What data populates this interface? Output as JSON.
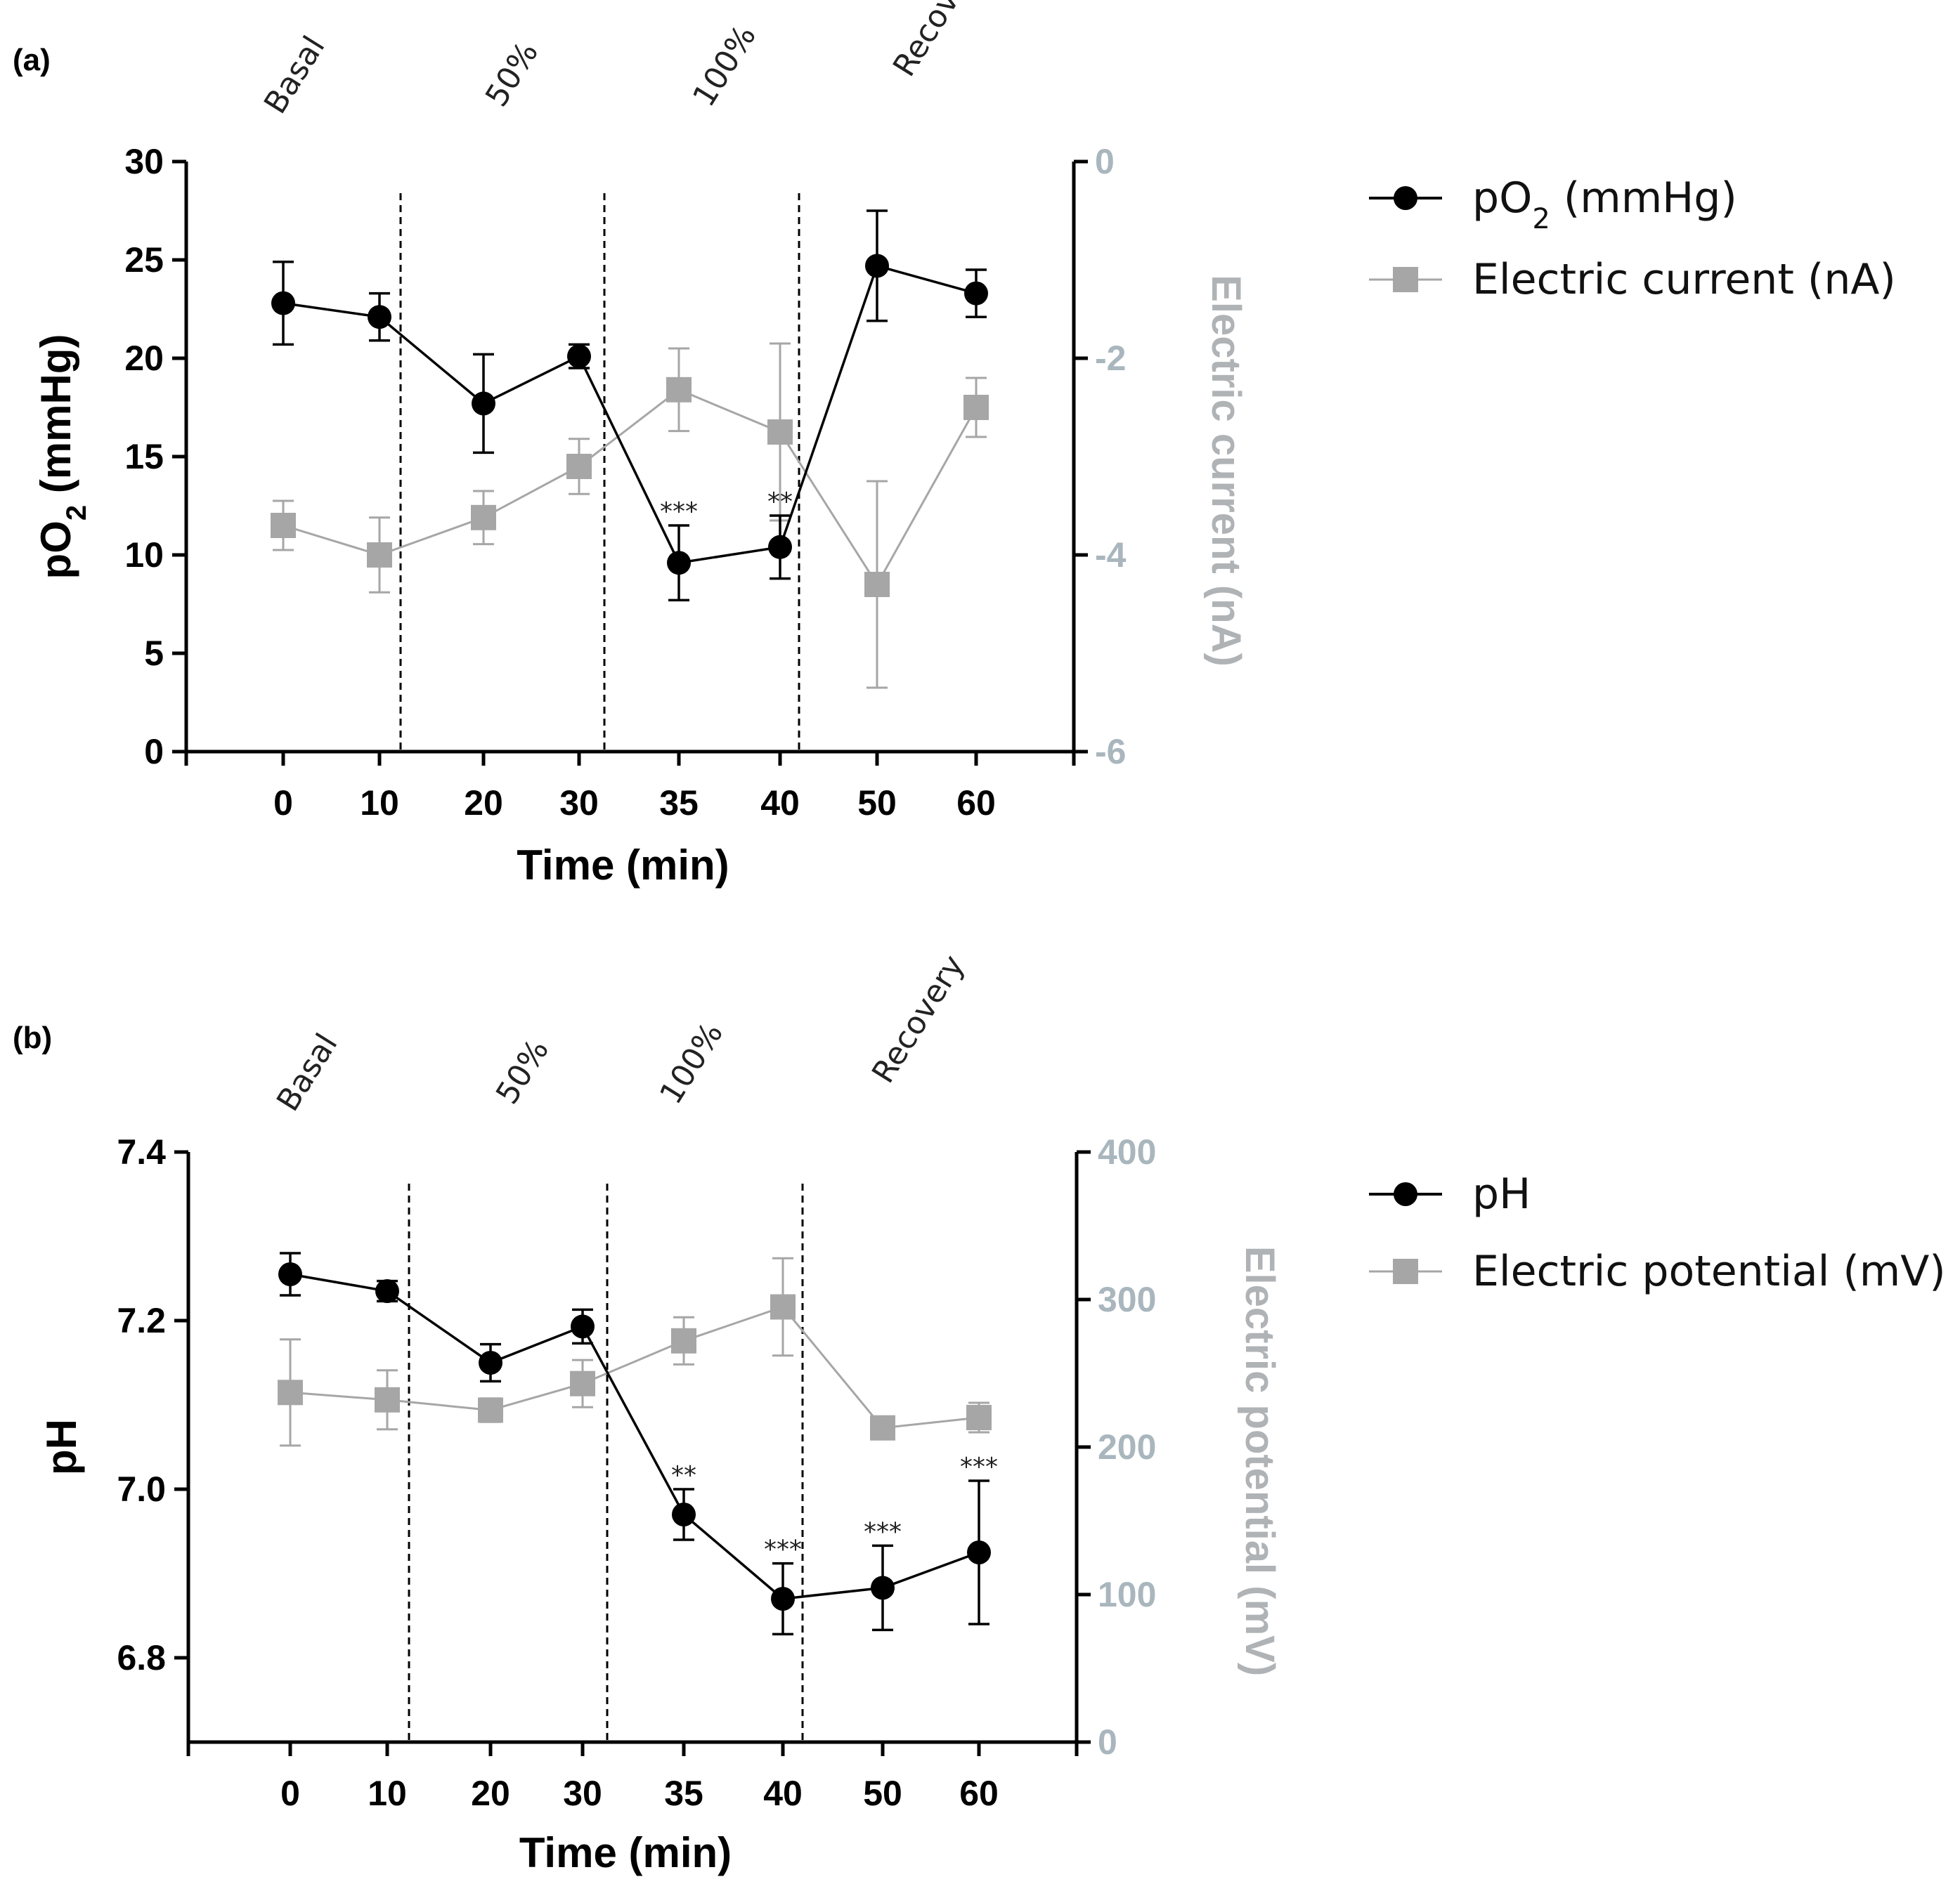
{
  "chart_data": [
    {
      "panel_label": "(a)",
      "type": "line",
      "xlabel": "Time (min)",
      "ylabel_left": {
        "main": "pO",
        "sub": "2",
        "rest": " (mmHg)"
      },
      "ylabel_right": "Electric current (nA)",
      "categories": [
        "0",
        "10",
        "20",
        "30",
        "35",
        "40",
        "50",
        "60"
      ],
      "phases": [
        "Basal",
        "50%",
        "100%",
        "Recovery"
      ],
      "ylim_left": [
        0,
        30
      ],
      "yticks_left": [
        "0",
        "5",
        "10",
        "15",
        "20",
        "25",
        "30"
      ],
      "ylim_right": [
        -6,
        0
      ],
      "yticks_right": [
        "-6",
        "-4",
        "-2",
        "0"
      ],
      "series": [
        {
          "name": "pO2 (mmHg)",
          "legend": {
            "main": "pO",
            "sub": "2",
            "rest": " (mmHg)"
          },
          "axis": "left",
          "marker": "circle",
          "color": "#000000",
          "values": [
            22.8,
            22.1,
            17.7,
            20.1,
            9.6,
            10.4,
            24.7,
            23.3
          ],
          "errors": [
            2.1,
            1.2,
            2.5,
            0.6,
            1.9,
            1.6,
            2.8,
            1.2
          ],
          "annotations": [
            "",
            "",
            "",
            "",
            "***",
            "**",
            "",
            ""
          ]
        },
        {
          "name": "Electric current (nA)",
          "legend": {
            "main": "Electric current (nA)",
            "sub": "",
            "rest": ""
          },
          "axis": "right",
          "marker": "square",
          "color": "#a6a6a6",
          "values": [
            -3.7,
            -4.0,
            -3.62,
            -3.1,
            -2.32,
            -2.75,
            -4.3,
            -2.5
          ],
          "errors": [
            0.25,
            0.38,
            0.27,
            0.28,
            0.42,
            0.9,
            1.05,
            0.3
          ]
        }
      ]
    },
    {
      "panel_label": "(b)",
      "type": "line",
      "xlabel": "Time (min)",
      "ylabel_left": {
        "main": "pH",
        "sub": "",
        "rest": ""
      },
      "ylabel_right": "Electric potential (mV)",
      "categories": [
        "0",
        "10",
        "20",
        "30",
        "35",
        "40",
        "50",
        "60"
      ],
      "phases": [
        "Basal",
        "50%",
        "100%",
        "Recovery"
      ],
      "ylim_left": [
        6.7,
        7.4
      ],
      "yticks_left": [
        "6.8",
        "7.0",
        "7.2",
        "7.4"
      ],
      "ylim_right": [
        0,
        400
      ],
      "yticks_right": [
        "0",
        "100",
        "200",
        "300",
        "400"
      ],
      "series": [
        {
          "name": "pH",
          "legend": {
            "main": "pH",
            "sub": "",
            "rest": ""
          },
          "axis": "left",
          "marker": "circle",
          "color": "#000000",
          "values": [
            7.255,
            7.235,
            7.15,
            7.193,
            6.97,
            6.87,
            6.883,
            6.925
          ],
          "errors": [
            0.025,
            0.012,
            0.022,
            0.02,
            0.03,
            0.042,
            0.05,
            0.085
          ],
          "annotations": [
            "",
            "",
            "",
            "",
            "**",
            "***",
            "***",
            "***"
          ]
        },
        {
          "name": "Electric potential (mV)",
          "legend": {
            "main": "Electric potential (mV)",
            "sub": "",
            "rest": ""
          },
          "axis": "right",
          "marker": "square",
          "color": "#a6a6a6",
          "values": [
            237,
            232,
            225,
            243,
            272,
            295,
            213,
            220
          ],
          "errors": [
            36,
            20,
            8,
            16,
            16,
            33,
            3,
            10
          ]
        }
      ]
    }
  ]
}
